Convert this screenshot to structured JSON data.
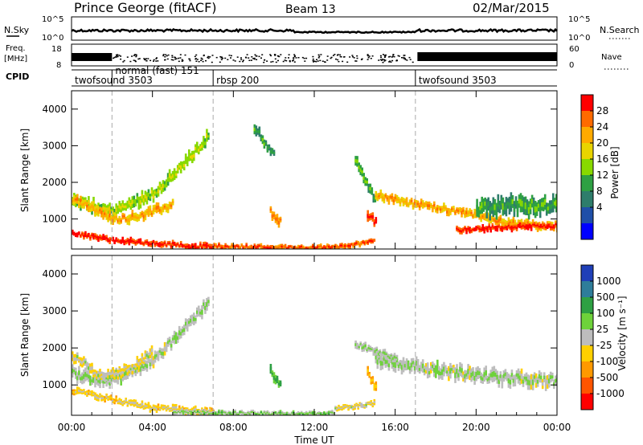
{
  "header": {
    "station": "Prince George (fitACF)",
    "beam": "Beam 13",
    "date": "02/Mar/2015"
  },
  "strip_labels": {
    "nsky": "N.Sky",
    "freq": "Freq.",
    "freq_unit": "[MHz]",
    "cpid": "CPID",
    "nsearch": "N.Search",
    "nave": "Nave",
    "nsky_ticks": [
      "10^5",
      "10^0"
    ],
    "freq_ticks": [
      "18",
      "8"
    ],
    "nave_ticks": [
      "60",
      "0"
    ]
  },
  "cpid_segments": [
    {
      "label": "twofsound 3503",
      "start_hour": 0.0
    },
    {
      "label": "normal (fast) 151",
      "start_hour": 2.0
    },
    {
      "label": "rbsp 200",
      "start_hour": 7.0
    },
    {
      "label": "twofsound 3503",
      "start_hour": 17.0
    }
  ],
  "panels": {
    "power": {
      "ylabel": "Slant Range [km]",
      "colorbar_label": "Power [dB]",
      "colorbar_ticks": [
        "28",
        "24",
        "20",
        "16",
        "12",
        "8",
        "4"
      ],
      "colors": [
        "#ff0000",
        "#ff6a00",
        "#ffaa00",
        "#e9d400",
        "#88d900",
        "#2ea043",
        "#2e7d6b",
        "#1f4fa8",
        "#0000ff"
      ]
    },
    "velocity": {
      "ylabel": "Slant Range [km]",
      "colorbar_label": "Velocity [m s⁻¹]",
      "colorbar_ticks": [
        "1000",
        "500",
        "100",
        "25",
        "-25",
        "-100",
        "-500",
        "-1000"
      ],
      "colors": [
        "#1f3fb8",
        "#2e7d9a",
        "#2ea043",
        "#6ed23a",
        "#bdbdbd",
        "#ffd000",
        "#ff9900",
        "#ff5500",
        "#ff0000"
      ]
    }
  },
  "xaxis": {
    "label": "Time UT",
    "ticks": [
      "00:00",
      "04:00",
      "08:00",
      "12:00",
      "16:00",
      "20:00",
      "00:00"
    ]
  },
  "chart_data": [
    {
      "type": "heatmap",
      "title": "Power",
      "x_range_hours": [
        0,
        24
      ],
      "ylim": [
        180,
        4500
      ],
      "yticks": [
        1000,
        2000,
        3000,
        4000
      ],
      "zlim": [
        0,
        30
      ],
      "bands": [
        {
          "t": [
            0,
            2,
            4,
            5,
            6,
            6.8
          ],
          "r": [
            1500,
            1200,
            1700,
            2200,
            2800,
            3300
          ],
          "w": 300,
          "z": 14
        },
        {
          "t": [
            0,
            2,
            3,
            4,
            5
          ],
          "r": [
            1550,
            1000,
            1050,
            1200,
            1400
          ],
          "w": 250,
          "z": 20
        },
        {
          "t": [
            0,
            2,
            4,
            6,
            7
          ],
          "r": [
            620,
            420,
            330,
            260,
            250
          ],
          "w": 160,
          "z": 26
        },
        {
          "t": [
            7,
            9,
            11,
            13,
            14,
            15
          ],
          "r": [
            260,
            240,
            220,
            230,
            300,
            450
          ],
          "w": 130,
          "z": 24
        },
        {
          "t": [
            9,
            10
          ],
          "r": [
            3500,
            2700
          ],
          "w": 250,
          "z": 9
        },
        {
          "t": [
            9.8,
            10.3
          ],
          "r": [
            1200,
            900
          ],
          "w": 260,
          "z": 22
        },
        {
          "t": [
            14,
            15
          ],
          "r": [
            2600,
            1500
          ],
          "w": 260,
          "z": 11
        },
        {
          "t": [
            14.6,
            15
          ],
          "r": [
            1150,
            900
          ],
          "w": 280,
          "z": 26
        },
        {
          "t": [
            15,
            17,
            20,
            22,
            24
          ],
          "r": [
            1650,
            1400,
            1100,
            850,
            800
          ],
          "w": 220,
          "z": 20
        },
        {
          "t": [
            20,
            22,
            24
          ],
          "r": [
            1300,
            1350,
            1400
          ],
          "w": 450,
          "z": 10
        },
        {
          "t": [
            19,
            21,
            23.9
          ],
          "r": [
            700,
            760,
            820
          ],
          "w": 160,
          "z": 26
        }
      ]
    },
    {
      "type": "heatmap",
      "title": "Velocity",
      "x_range_hours": [
        0,
        24
      ],
      "ylim": [
        180,
        4500
      ],
      "yticks": [
        1000,
        2000,
        3000,
        4000
      ],
      "zlim": [
        -1000,
        1000
      ],
      "bands": [
        {
          "t": [
            0,
            2,
            4,
            5,
            6,
            6.8
          ],
          "r": [
            1300,
            1100,
            1700,
            2200,
            2800,
            3300
          ],
          "w": 320,
          "z": 0
        },
        {
          "t": [
            0,
            1.5,
            3,
            4
          ],
          "r": [
            1800,
            1200,
            1500,
            1900
          ],
          "w": 250,
          "z": -150
        },
        {
          "t": [
            0,
            2,
            4,
            6,
            7
          ],
          "r": [
            850,
            600,
            380,
            300,
            280
          ],
          "w": 180,
          "z": -250
        },
        {
          "t": [
            5,
            8,
            11,
            13
          ],
          "r": [
            260,
            240,
            220,
            230
          ],
          "w": 120,
          "z": 60
        },
        {
          "t": [
            13,
            15
          ],
          "r": [
            350,
            500
          ],
          "w": 140,
          "z": -150
        },
        {
          "t": [
            14.6,
            15
          ],
          "r": [
            1350,
            900
          ],
          "w": 260,
          "z": -350
        },
        {
          "t": [
            9.8,
            10.3
          ],
          "r": [
            1400,
            1000
          ],
          "w": 260,
          "z": 250
        },
        {
          "t": [
            15,
            18,
            21,
            24
          ],
          "r": [
            1700,
            1400,
            1200,
            1100
          ],
          "w": 360,
          "z": 0
        },
        {
          "t": [
            14,
            16
          ],
          "r": [
            2100,
            1700
          ],
          "w": 200,
          "z": 0
        }
      ]
    }
  ]
}
